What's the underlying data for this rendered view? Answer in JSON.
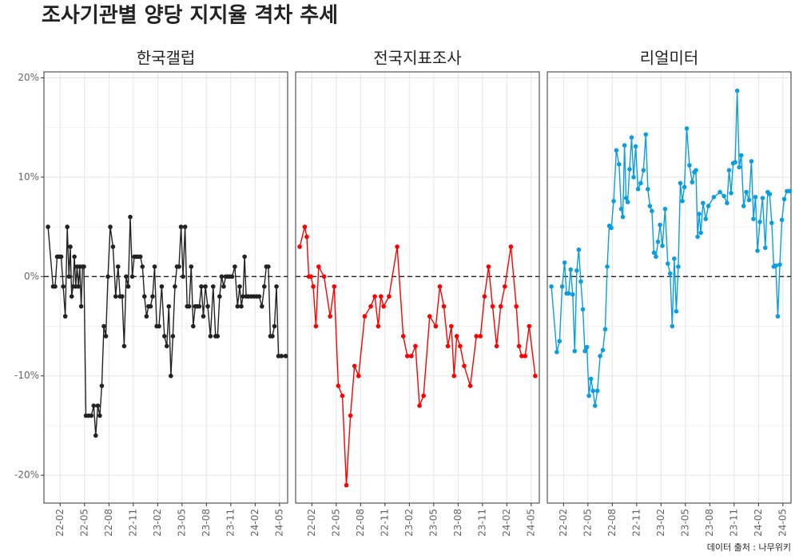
{
  "title": "조사기관별 양당 지지율 격차 추세",
  "caption": "데이터 출처 : 나무위키",
  "chart_data": [
    {
      "type": "line",
      "title": "한국갤럽",
      "color": "#222222",
      "x": [
        "21-12",
        "22-01",
        "22-01",
        "22-01",
        "22-01",
        "22-02",
        "22-02",
        "22-02",
        "22-02",
        "22-03",
        "22-03",
        "22-03",
        "22-03",
        "22-03",
        "22-03",
        "22-04",
        "22-04",
        "22-04",
        "22-04",
        "22-04",
        "22-04",
        "22-05",
        "22-05",
        "22-05",
        "22-06",
        "22-06",
        "22-06",
        "22-06",
        "22-07",
        "22-07",
        "22-07",
        "22-07",
        "22-08",
        "22-08",
        "22-08",
        "22-09",
        "22-09",
        "22-09",
        "22-09",
        "22-10",
        "22-10",
        "22-10",
        "22-10",
        "22-11",
        "22-11",
        "22-11",
        "22-11",
        "22-12",
        "22-12",
        "22-12",
        "22-12",
        "23-01",
        "23-01",
        "23-01",
        "23-01",
        "23-02",
        "23-02",
        "23-02",
        "23-03",
        "23-03",
        "23-03",
        "23-03",
        "23-04",
        "23-04",
        "23-04",
        "23-04",
        "23-05",
        "23-05",
        "23-05",
        "23-05",
        "23-06",
        "23-06",
        "23-06",
        "23-06",
        "23-07",
        "23-07",
        "23-07",
        "23-07",
        "23-08",
        "23-08",
        "23-08",
        "23-09",
        "23-09",
        "23-09",
        "23-09",
        "23-10",
        "23-10",
        "23-10",
        "23-10",
        "23-11",
        "23-11",
        "23-11",
        "23-12",
        "23-12",
        "23-12",
        "23-12",
        "23-12",
        "24-01",
        "24-01",
        "24-01",
        "24-02",
        "24-02",
        "24-02",
        "24-03",
        "24-03",
        "24-03",
        "24-03",
        "24-04",
        "24-04",
        "24-04",
        "24-04",
        "24-05",
        "24-05"
      ],
      "values": [
        5,
        -1,
        -1,
        2,
        2,
        2,
        -1,
        -4,
        5,
        0,
        3,
        -2,
        -1,
        2,
        -1,
        1,
        -1,
        1,
        -3,
        1,
        1,
        -14,
        -14,
        -14,
        -13,
        -16,
        -13,
        -14,
        -11,
        -5,
        -6,
        0,
        5,
        3,
        -2,
        1,
        -2,
        -2,
        -7,
        0,
        -1,
        6,
        0,
        2,
        2,
        2,
        2,
        1,
        -2,
        -4,
        -3,
        -3,
        -2,
        1,
        -5,
        -5,
        -1,
        -6,
        -7,
        -3,
        -10,
        -6,
        -1,
        1,
        1,
        5,
        0,
        5,
        -3,
        -3,
        1,
        -5,
        -3,
        -3,
        -3,
        -1,
        -4,
        -1,
        -3,
        -6,
        -1,
        -6,
        -6,
        -2,
        0,
        -1,
        0,
        0,
        0,
        0,
        1,
        -3,
        -1,
        -3,
        -2,
        2,
        -2,
        -2,
        -2,
        -2,
        -2,
        -2,
        -3,
        -1,
        1,
        1,
        -6,
        -6,
        -5,
        -1,
        -8,
        -8,
        -8
      ],
      "xlim": [
        "21-12",
        "24-06"
      ],
      "xticks": [
        "22-02",
        "22-05",
        "22-08",
        "22-11",
        "23-02",
        "23-05",
        "23-08",
        "23-11",
        "24-02",
        "24-05"
      ],
      "ylim": [
        -22.8,
        20.6
      ],
      "yticks": [
        {
          "value": -20,
          "label": "-20%"
        },
        {
          "value": -10,
          "label": "-10%"
        },
        {
          "value": 0,
          "label": "0%"
        },
        {
          "value": 10,
          "label": "10%"
        },
        {
          "value": 20,
          "label": "20%"
        }
      ],
      "yminor": [
        -15,
        -5,
        5,
        15
      ],
      "hline": 0,
      "grid": true
    },
    {
      "type": "line",
      "title": "전국지표조사",
      "color": "#ff0000",
      "x": [
        "21-12",
        "22-01",
        "22-01",
        "22-01",
        "22-01",
        "22-02",
        "22-02",
        "22-02",
        "22-03",
        "22-04",
        "22-04",
        "22-05",
        "22-05",
        "22-06",
        "22-06",
        "22-07",
        "22-07",
        "22-08",
        "22-09",
        "22-09",
        "22-10",
        "22-10",
        "22-10",
        "22-11",
        "22-12",
        "23-01",
        "23-01",
        "23-02",
        "23-02",
        "23-03",
        "23-03",
        "23-04",
        "23-05",
        "23-05",
        "23-06",
        "23-06",
        "23-07",
        "23-07",
        "23-07",
        "23-08",
        "23-08",
        "23-09",
        "23-10",
        "23-10",
        "23-11",
        "23-11",
        "23-12",
        "23-12",
        "24-01",
        "24-01",
        "24-02",
        "24-03",
        "24-03",
        "24-03",
        "24-04",
        "24-04",
        "24-05"
      ],
      "values": [
        3,
        5,
        4,
        0,
        0,
        -1,
        -5,
        1,
        0,
        -4,
        -1,
        -11,
        -12,
        -21,
        -14,
        -9,
        -10,
        -4,
        -3,
        -2,
        -5,
        -2,
        -3,
        -2,
        3,
        -6,
        -8,
        -8,
        -7,
        -13,
        -12,
        -4,
        -5,
        -1,
        -3,
        -7,
        -5,
        -10,
        -6,
        -7,
        -9,
        -11,
        -6,
        -6,
        -2,
        1,
        -3,
        -7,
        -3,
        -1,
        3,
        -3,
        -7,
        -8,
        -8,
        -5,
        -10
      ],
      "xlim": [
        "21-12",
        "24-06"
      ],
      "xticks": [
        "22-02",
        "22-05",
        "22-08",
        "22-11",
        "23-02",
        "23-05",
        "23-08",
        "23-11",
        "24-02",
        "24-05"
      ],
      "ylim": [
        -22.8,
        20.6
      ],
      "yticks": [
        -20,
        -10,
        0,
        10,
        20
      ],
      "yminor": [
        -15,
        -5,
        5,
        15
      ],
      "hline": 0,
      "grid": true
    },
    {
      "type": "line",
      "title": "리얼미터",
      "color": "#0a9ee0",
      "x": [
        "21-12",
        "22-01",
        "22-01",
        "22-01",
        "22-02",
        "22-02",
        "22-02",
        "22-02",
        "22-03",
        "22-03",
        "22-03",
        "22-03",
        "22-04",
        "22-04",
        "22-04",
        "22-04",
        "22-05",
        "22-05",
        "22-05",
        "22-05",
        "22-06",
        "22-06",
        "22-06",
        "22-07",
        "22-07",
        "22-07",
        "22-07",
        "22-08",
        "22-08",
        "22-08",
        "22-09",
        "22-09",
        "22-09",
        "22-09",
        "22-09",
        "22-10",
        "22-10",
        "22-10",
        "22-10",
        "22-11",
        "22-11",
        "22-11",
        "22-12",
        "22-12",
        "22-12",
        "22-12",
        "23-01",
        "23-01",
        "23-01",
        "23-01",
        "23-02",
        "23-02",
        "23-02",
        "23-03",
        "23-03",
        "23-03",
        "23-03",
        "23-04",
        "23-04",
        "23-04",
        "23-04",
        "23-05",
        "23-05",
        "23-05",
        "23-06",
        "23-06",
        "23-06",
        "23-06",
        "23-06",
        "23-07",
        "23-07",
        "23-07",
        "23-08",
        "23-09",
        "23-09",
        "23-10",
        "23-10",
        "23-10",
        "23-10",
        "23-11",
        "23-11",
        "23-11",
        "23-11",
        "23-12",
        "23-12",
        "23-12",
        "24-01",
        "24-01",
        "24-01",
        "24-01",
        "24-02",
        "24-02",
        "24-02",
        "24-03",
        "24-03",
        "24-03",
        "24-03",
        "24-04",
        "24-04",
        "24-04",
        "24-04",
        "24-05",
        "24-05",
        "24-05"
      ],
      "values": [
        -1,
        -7.6,
        -6.5,
        -1,
        1.4,
        -1.7,
        -1.7,
        0.7,
        -1.8,
        -7.5,
        0.6,
        2.7,
        -0.5,
        -3.3,
        -7.5,
        -7.1,
        -12,
        -10.3,
        -11.5,
        -13,
        -11.5,
        -8,
        -7.4,
        -5.3,
        1,
        5.1,
        4.9,
        7.6,
        12.7,
        11.3,
        6.8,
        6,
        13.2,
        7.9,
        7.5,
        10.8,
        14,
        10,
        13.1,
        8.8,
        9.4,
        10.7,
        14.3,
        8.8,
        7.1,
        6.6,
        2.4,
        2,
        3.5,
        5.2,
        3.1,
        6.8,
        1.3,
        0.3,
        -5,
        1.8,
        -3.5,
        1,
        9.4,
        7.6,
        9,
        14.9,
        11.2,
        9.5,
        10.5,
        10.7,
        4,
        6.3,
        4.4,
        7.4,
        5.8,
        7.1,
        8,
        8.5,
        8.1,
        7.4,
        10.7,
        8.4,
        11.4,
        11.5,
        18.7,
        11,
        12.2,
        7.1,
        8.5,
        7.7,
        11.6,
        5.8,
        8,
        2.6,
        5.5,
        7.9,
        2.9,
        8.5,
        8.3,
        5.4,
        1,
        1.1,
        -4,
        1.2,
        5.7,
        7.8,
        8.6,
        8.6
      ],
      "xlim": [
        "21-12",
        "24-06"
      ],
      "xticks": [
        "22-02",
        "22-05",
        "22-08",
        "22-11",
        "23-02",
        "23-05",
        "23-08",
        "23-11",
        "24-02",
        "24-05"
      ],
      "ylim": [
        -22.8,
        20.6
      ],
      "yticks": [
        -20,
        -10,
        0,
        10,
        20
      ],
      "yminor": [
        -15,
        -5,
        5,
        15
      ],
      "hline": 0,
      "grid": true
    }
  ]
}
